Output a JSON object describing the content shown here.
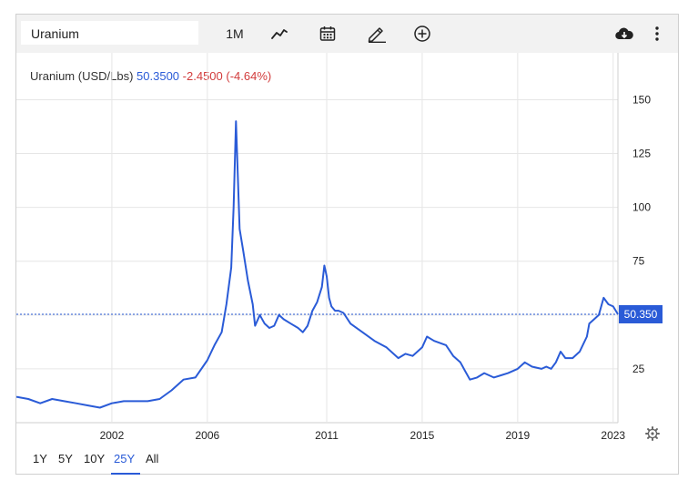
{
  "toolbar": {
    "search_value": "Uranium",
    "period_label": "1M",
    "icons": [
      "line-chart-icon",
      "calendar-icon",
      "pencil-icon",
      "add-circle-icon",
      "cloud-download-icon",
      "more-vertical-icon"
    ]
  },
  "legend": {
    "name": "Uranium (USD/Lbs)",
    "price": "50.3500",
    "change": "-2.4500 (-4.64%)"
  },
  "last_price_label": "50.350",
  "ranges": [
    "1Y",
    "5Y",
    "10Y",
    "25Y",
    "All"
  ],
  "active_range": "25Y",
  "colors": {
    "line": "#2a5bd7",
    "down": "#d23c3c",
    "grid": "#e6e6e6",
    "tag": "#2a5bd7"
  },
  "chart_data": {
    "type": "line",
    "title": "Uranium (USD/Lbs)",
    "xlabel": "",
    "ylabel": "",
    "xlim": [
      1998.0,
      2023.2
    ],
    "ylim": [
      0,
      165
    ],
    "y_ticks": [
      25,
      50,
      75,
      100,
      125,
      150
    ],
    "x_ticks": [
      2002,
      2006,
      2011,
      2015,
      2019,
      2023
    ],
    "x_tick_labels": [
      "2002",
      "2006",
      "2011",
      "2015",
      "2019",
      "2023"
    ],
    "grid": true,
    "series": [
      {
        "x": [
          1998.0,
          1998.5,
          1999.0,
          1999.5,
          2000.0,
          2000.5,
          2001.0,
          2001.5,
          2002.0,
          2002.5,
          2003.0,
          2003.5,
          2004.0,
          2004.5,
          2005.0,
          2005.5,
          2006.0,
          2006.3,
          2006.6,
          2006.8,
          2007.0,
          2007.1,
          2007.2,
          2007.35,
          2007.5,
          2007.7,
          2007.9,
          2008.0,
          2008.2,
          2008.4,
          2008.6,
          2008.8,
          2009.0,
          2009.2,
          2009.5,
          2009.8,
          2010.0,
          2010.2,
          2010.4,
          2010.6,
          2010.8,
          2010.9,
          2011.0,
          2011.1,
          2011.2,
          2011.35,
          2011.5,
          2011.7,
          2012.0,
          2012.5,
          2013.0,
          2013.5,
          2014.0,
          2014.3,
          2014.6,
          2015.0,
          2015.2,
          2015.5,
          2016.0,
          2016.3,
          2016.6,
          2016.8,
          2017.0,
          2017.3,
          2017.6,
          2018.0,
          2018.3,
          2018.6,
          2019.0,
          2019.3,
          2019.6,
          2020.0,
          2020.2,
          2020.4,
          2020.6,
          2020.8,
          2021.0,
          2021.3,
          2021.6,
          2021.9,
          2022.0,
          2022.2,
          2022.4,
          2022.6,
          2022.8,
          2023.0,
          2023.2
        ],
        "y": [
          12,
          11,
          9,
          11,
          10,
          9,
          8,
          7,
          9,
          10,
          10,
          10,
          11,
          15,
          20,
          21,
          29,
          36,
          42,
          55,
          72,
          100,
          140,
          90,
          80,
          66,
          55,
          45,
          50,
          46,
          44,
          45,
          50,
          48,
          46,
          44,
          42,
          45,
          52,
          56,
          63,
          73,
          68,
          58,
          54,
          52,
          52,
          51,
          46,
          42,
          38,
          35,
          30,
          32,
          31,
          35,
          40,
          38,
          36,
          31,
          28,
          24,
          20,
          21,
          23,
          21,
          22,
          23,
          25,
          28,
          26,
          25,
          26,
          25,
          28,
          33,
          30,
          30,
          33,
          40,
          46,
          48,
          50,
          58,
          55,
          54,
          50.35
        ]
      }
    ]
  }
}
